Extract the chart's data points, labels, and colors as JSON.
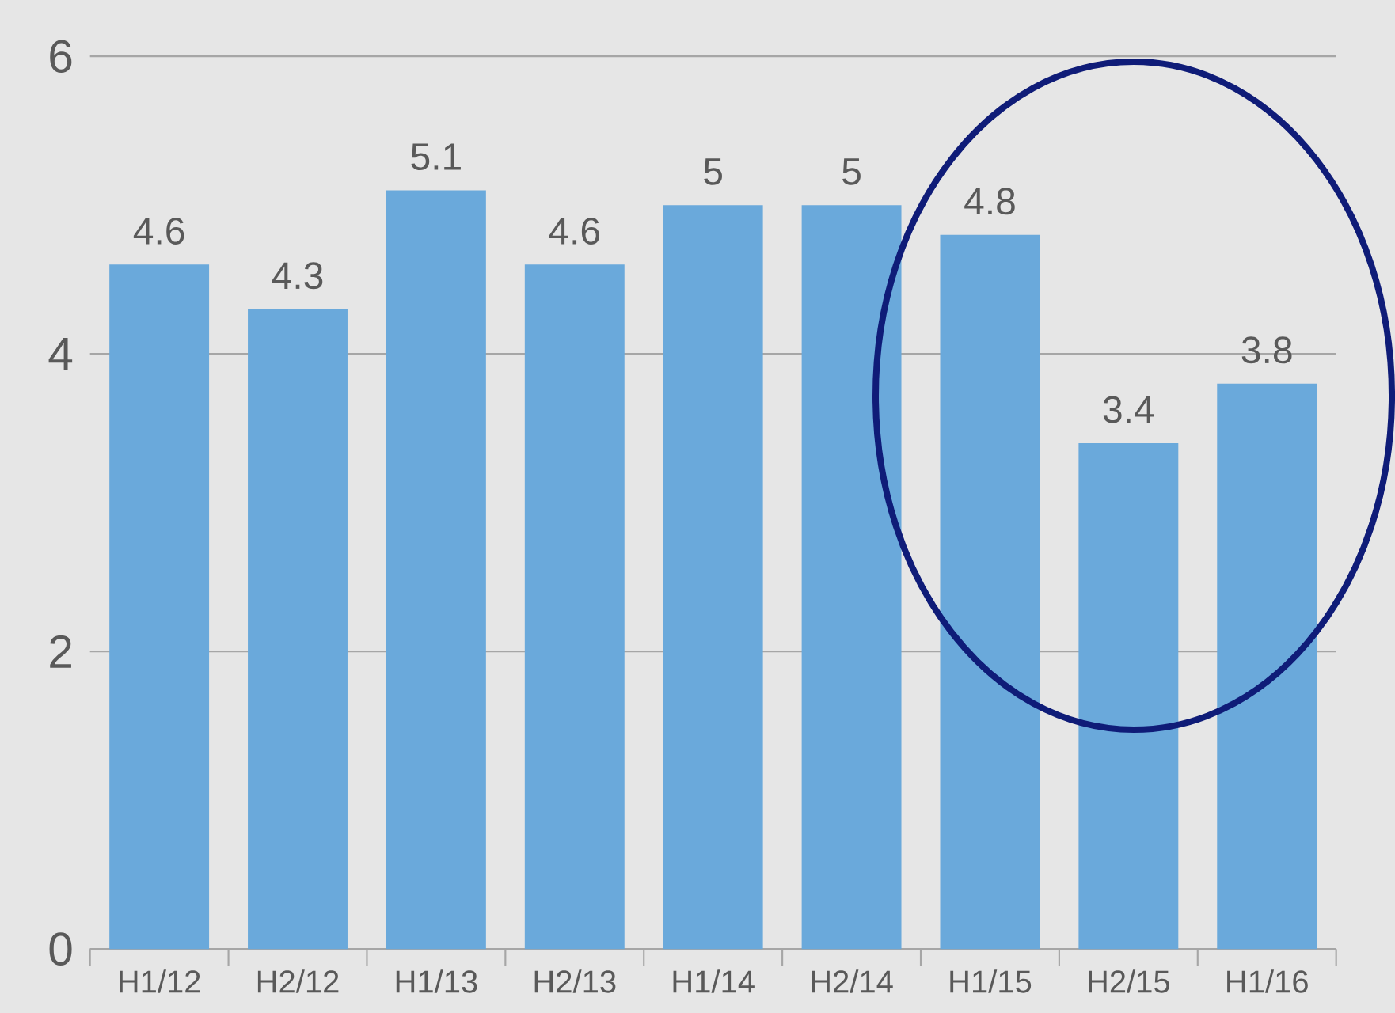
{
  "chart_data": {
    "type": "bar",
    "categories": [
      "H1/12",
      "H2/12",
      "H1/13",
      "H2/13",
      "H1/14",
      "H2/14",
      "H1/15",
      "H2/15",
      "H1/16"
    ],
    "values": [
      4.6,
      4.3,
      5.1,
      4.6,
      5,
      5,
      4.8,
      3.4,
      3.8
    ],
    "color": "#6aa9db",
    "ylim": [
      0,
      6
    ],
    "yticks": [
      0,
      2,
      4,
      6
    ],
    "grid": "y",
    "data_labels": true
  }
}
